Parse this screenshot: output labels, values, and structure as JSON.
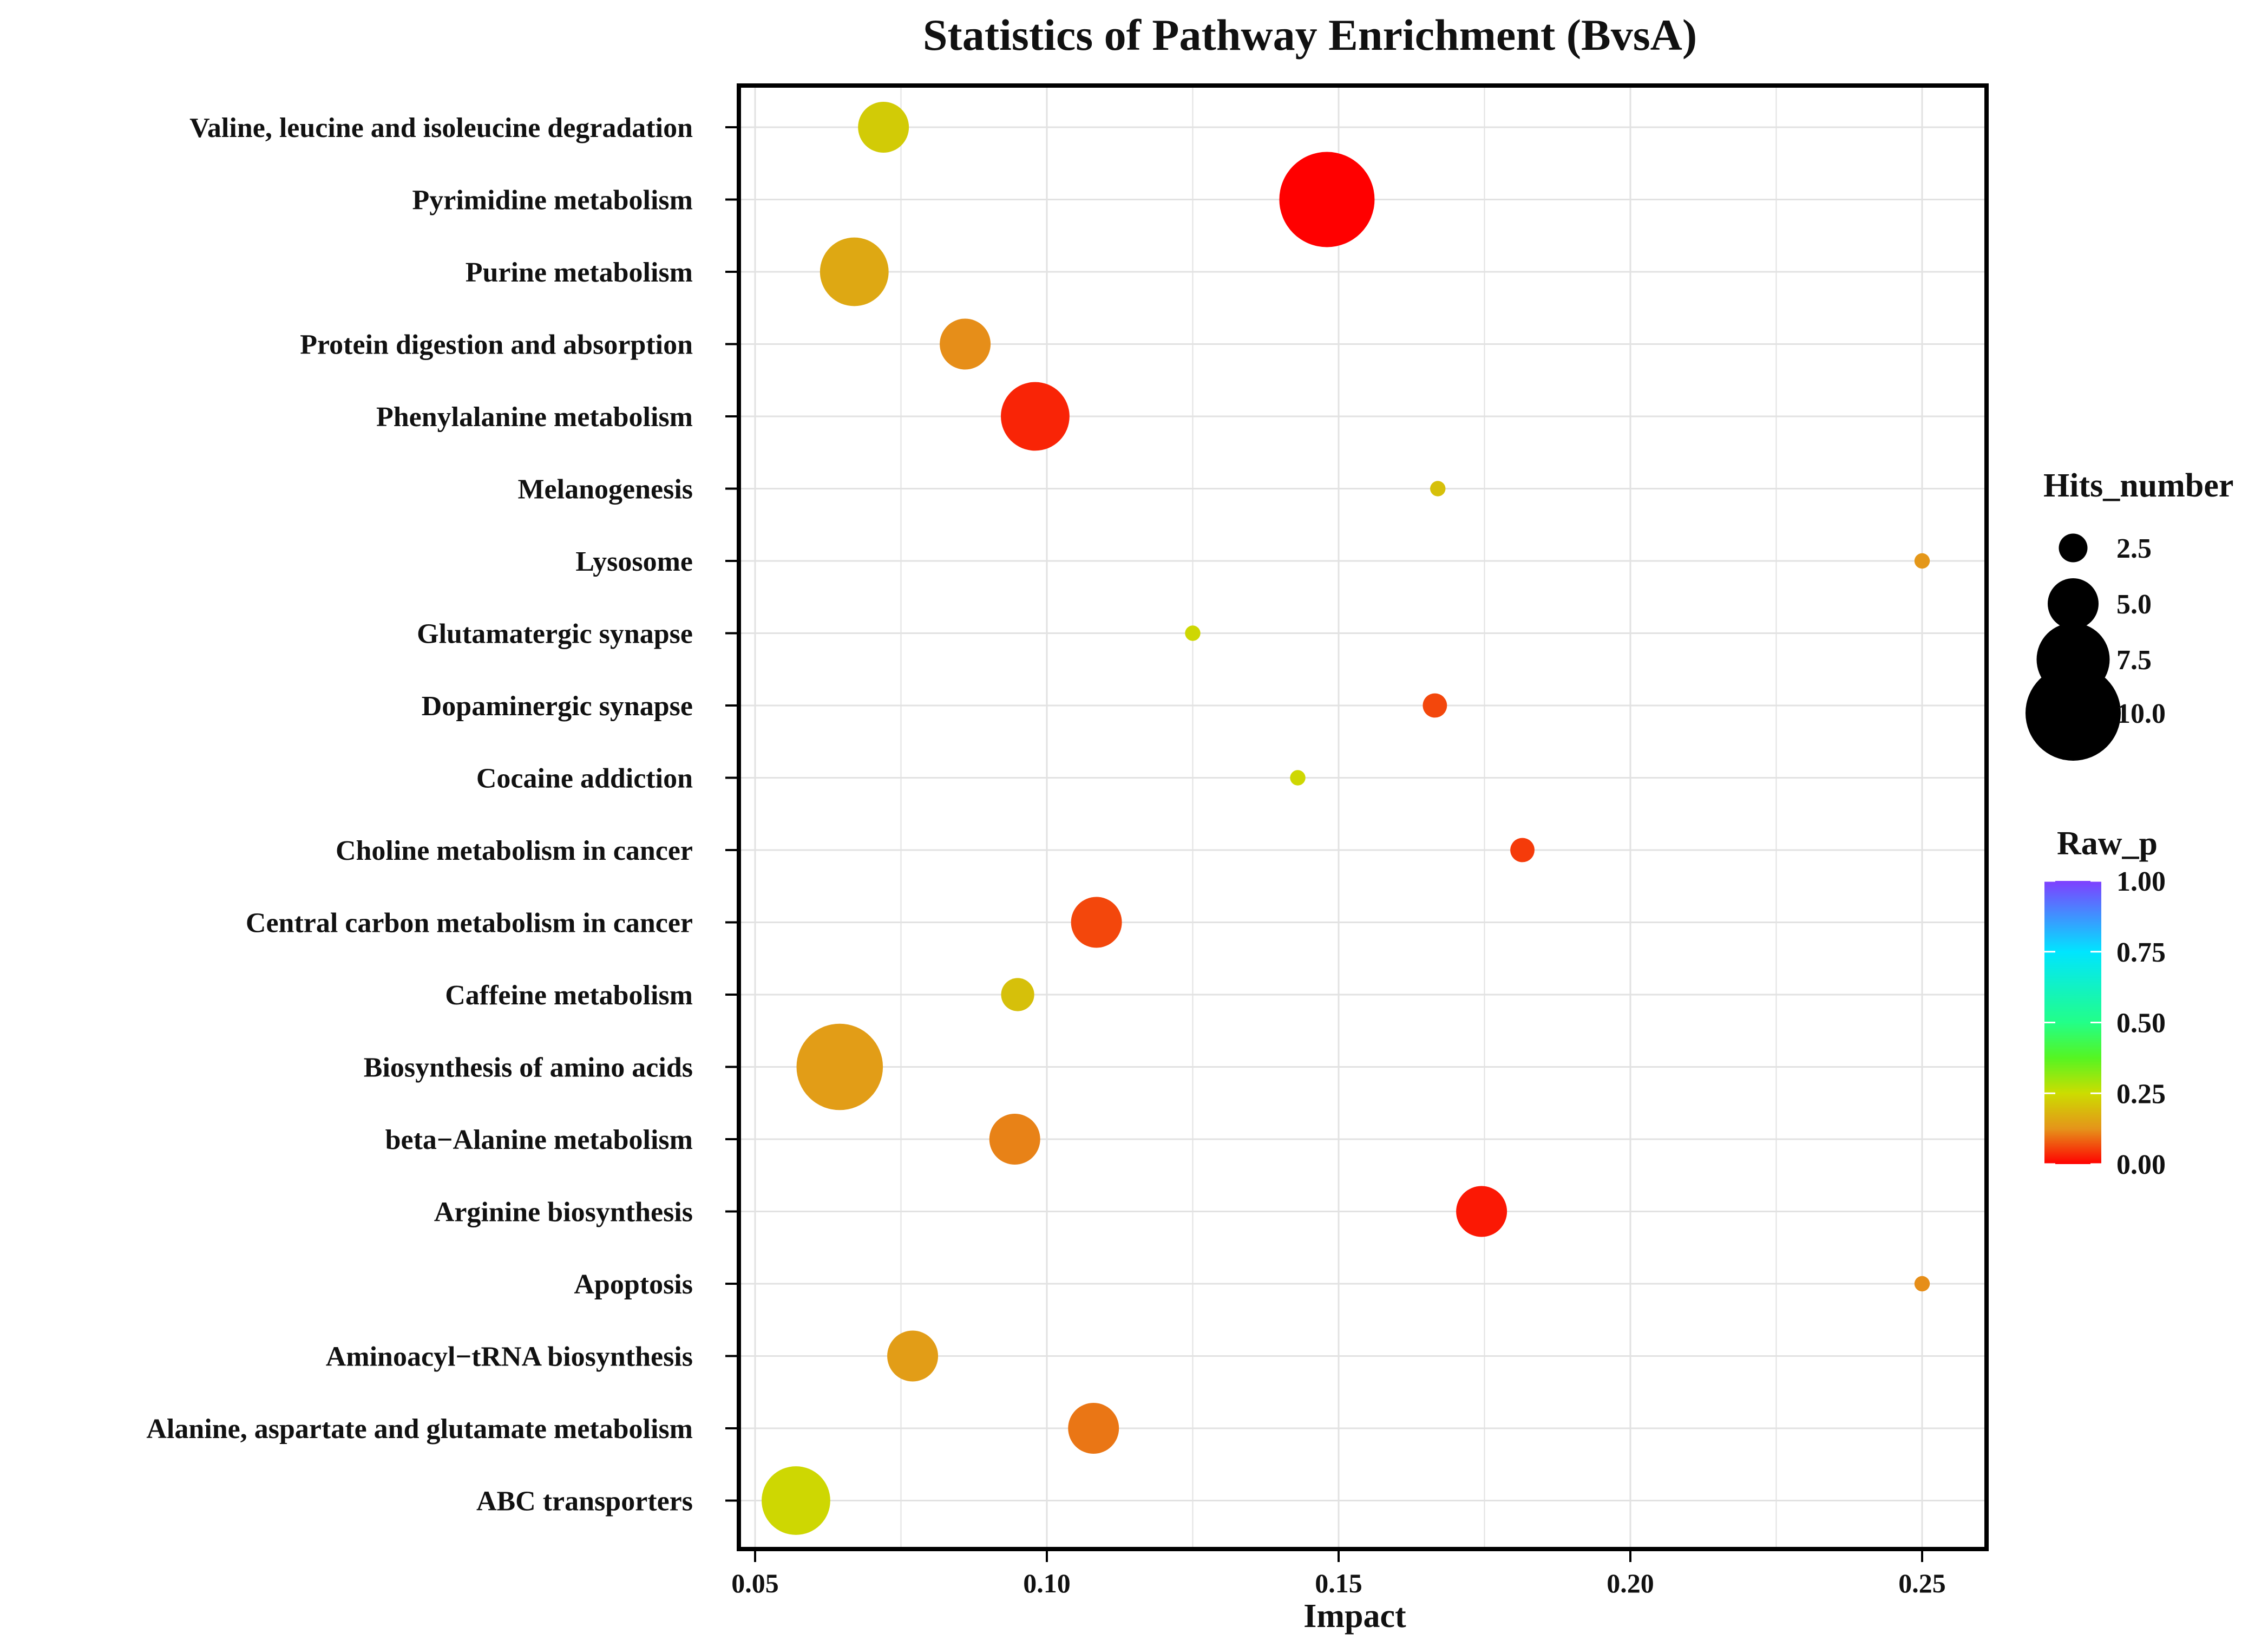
{
  "chart_data": {
    "type": "scatter",
    "title": "Statistics of Pathway Enrichment  (BvsA)",
    "xlabel": "Impact",
    "ylabel": "",
    "xlim": [
      0.047,
      0.26
    ],
    "xticks": [
      0.05,
      0.1,
      0.15,
      0.2,
      0.25
    ],
    "xtick_labels": [
      "0.05",
      "0.10",
      "0.15",
      "0.20",
      "0.25"
    ],
    "grid": true,
    "categories": [
      "Valine, leucine and  isoleucine degradation",
      "Pyrimidine  metabolism",
      "Purine metabolism",
      "Protein digestion and absorption",
      "Phenylalanine metabolism",
      "Melanogenesis",
      "Lysosome",
      "Glutamatergic  synapse",
      "Dopaminergic  synapse",
      "Cocaine  addiction",
      "Choline metabolism  in cancer",
      "Central carbon  metabolism  in cancer",
      "Caffeine metabolism",
      "Biosynthesis of amino  acids",
      "beta−Alanine  metabolism",
      "Arginine biosynthesis",
      "Apoptosis",
      "Aminoacyl−tRNA  biosynthesis",
      "Alanine, aspartate  and glutamate  metabolism",
      "ABC transporters"
    ],
    "points": [
      {
        "pathway": "Valine, leucine and  isoleucine degradation",
        "impact": 0.072,
        "hits": 5,
        "raw_p": 0.22
      },
      {
        "pathway": "Pyrimidine  metabolism",
        "impact": 0.148,
        "hits": 10,
        "raw_p": 0.0
      },
      {
        "pathway": "Purine metabolism",
        "impact": 0.067,
        "hits": 7,
        "raw_p": 0.16
      },
      {
        "pathway": "Protein digestion and absorption",
        "impact": 0.086,
        "hits": 5,
        "raw_p": 0.12
      },
      {
        "pathway": "Phenylalanine metabolism",
        "impact": 0.098,
        "hits": 7,
        "raw_p": 0.03
      },
      {
        "pathway": "Melanogenesis",
        "impact": 0.167,
        "hits": 1,
        "raw_p": 0.2
      },
      {
        "pathway": "Lysosome",
        "impact": 0.25,
        "hits": 1,
        "raw_p": 0.13
      },
      {
        "pathway": "Glutamatergic  synapse",
        "impact": 0.125,
        "hits": 1,
        "raw_p": 0.24
      },
      {
        "pathway": "Dopaminergic  synapse",
        "impact": 0.1665,
        "hits": 2,
        "raw_p": 0.06
      },
      {
        "pathway": "Cocaine  addiction",
        "impact": 0.143,
        "hits": 1,
        "raw_p": 0.24
      },
      {
        "pathway": "Choline metabolism  in cancer",
        "impact": 0.1815,
        "hits": 2,
        "raw_p": 0.05
      },
      {
        "pathway": "Central carbon  metabolism  in cancer",
        "impact": 0.1085,
        "hits": 5,
        "raw_p": 0.06
      },
      {
        "pathway": "Caffeine metabolism",
        "impact": 0.095,
        "hits": 3,
        "raw_p": 0.2
      },
      {
        "pathway": "Biosynthesis of amino  acids",
        "impact": 0.0645,
        "hits": 9,
        "raw_p": 0.14
      },
      {
        "pathway": "beta−Alanine  metabolism",
        "impact": 0.0945,
        "hits": 5,
        "raw_p": 0.11
      },
      {
        "pathway": "Arginine biosynthesis",
        "impact": 0.1745,
        "hits": 5,
        "raw_p": 0.02
      },
      {
        "pathway": "Apoptosis",
        "impact": 0.25,
        "hits": 1,
        "raw_p": 0.12
      },
      {
        "pathway": "Aminoacyl−tRNA  biosynthesis",
        "impact": 0.077,
        "hits": 5,
        "raw_p": 0.14
      },
      {
        "pathway": "Alanine, aspartate  and glutamate  metabolism",
        "impact": 0.108,
        "hits": 5,
        "raw_p": 0.1
      },
      {
        "pathway": "ABC transporters",
        "impact": 0.057,
        "hits": 7,
        "raw_p": 0.24
      }
    ],
    "legend_size": {
      "title": "Hits_number",
      "values": [
        2.5,
        5.0,
        7.5,
        10.0
      ],
      "labels": [
        "2.5",
        "5.0",
        "7.5",
        "10.0"
      ],
      "placement": "right"
    },
    "legend_color": {
      "title": "Raw_p",
      "range": [
        0.0,
        1.0
      ],
      "ticks": [
        0.0,
        0.25,
        0.5,
        0.75,
        1.0
      ],
      "labels": [
        "0.00",
        "0.25",
        "0.50",
        "0.75",
        "1.00"
      ],
      "stops": [
        {
          "value": 0.0,
          "color": "#ff0000"
        },
        {
          "value": 0.125,
          "color": "#e5941a"
        },
        {
          "value": 0.25,
          "color": "#ccdd00"
        },
        {
          "value": 0.375,
          "color": "#55f522"
        },
        {
          "value": 0.5,
          "color": "#22ff88"
        },
        {
          "value": 0.75,
          "color": "#00e5ff"
        },
        {
          "value": 1.0,
          "color": "#7f3fff"
        }
      ],
      "placement": "right"
    },
    "colors": {
      "grid": "#e2e2e2",
      "frame": "#000000"
    }
  }
}
